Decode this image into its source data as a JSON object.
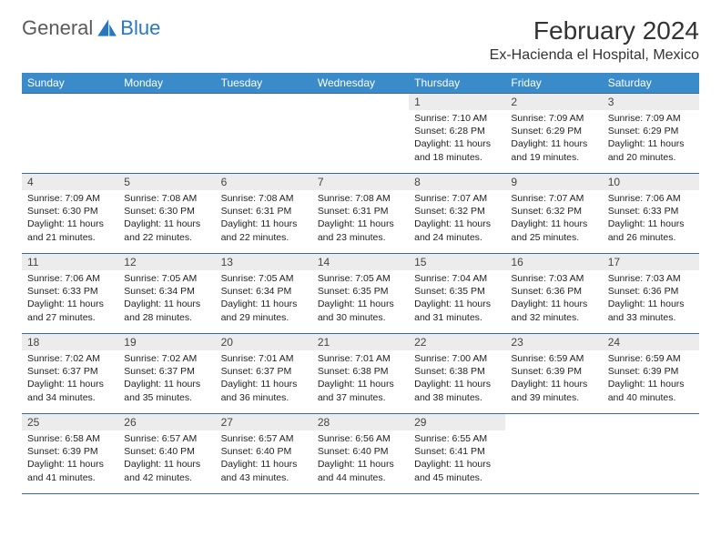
{
  "brand": {
    "word1": "General",
    "word2": "Blue"
  },
  "title": "February 2024",
  "location": "Ex-Hacienda el Hospital, Mexico",
  "colors": {
    "header_bg": "#3a8bc9",
    "header_text": "#ffffff",
    "rule": "#3a6a9a",
    "daynum_bg": "#ececec",
    "brand_gray": "#5a5a5a",
    "brand_blue": "#2779bd"
  },
  "weekdays": [
    "Sunday",
    "Monday",
    "Tuesday",
    "Wednesday",
    "Thursday",
    "Friday",
    "Saturday"
  ],
  "days": {
    "1": {
      "sunrise": "7:10 AM",
      "sunset": "6:28 PM",
      "dl": "11 hours and 18 minutes."
    },
    "2": {
      "sunrise": "7:09 AM",
      "sunset": "6:29 PM",
      "dl": "11 hours and 19 minutes."
    },
    "3": {
      "sunrise": "7:09 AM",
      "sunset": "6:29 PM",
      "dl": "11 hours and 20 minutes."
    },
    "4": {
      "sunrise": "7:09 AM",
      "sunset": "6:30 PM",
      "dl": "11 hours and 21 minutes."
    },
    "5": {
      "sunrise": "7:08 AM",
      "sunset": "6:30 PM",
      "dl": "11 hours and 22 minutes."
    },
    "6": {
      "sunrise": "7:08 AM",
      "sunset": "6:31 PM",
      "dl": "11 hours and 22 minutes."
    },
    "7": {
      "sunrise": "7:08 AM",
      "sunset": "6:31 PM",
      "dl": "11 hours and 23 minutes."
    },
    "8": {
      "sunrise": "7:07 AM",
      "sunset": "6:32 PM",
      "dl": "11 hours and 24 minutes."
    },
    "9": {
      "sunrise": "7:07 AM",
      "sunset": "6:32 PM",
      "dl": "11 hours and 25 minutes."
    },
    "10": {
      "sunrise": "7:06 AM",
      "sunset": "6:33 PM",
      "dl": "11 hours and 26 minutes."
    },
    "11": {
      "sunrise": "7:06 AM",
      "sunset": "6:33 PM",
      "dl": "11 hours and 27 minutes."
    },
    "12": {
      "sunrise": "7:05 AM",
      "sunset": "6:34 PM",
      "dl": "11 hours and 28 minutes."
    },
    "13": {
      "sunrise": "7:05 AM",
      "sunset": "6:34 PM",
      "dl": "11 hours and 29 minutes."
    },
    "14": {
      "sunrise": "7:05 AM",
      "sunset": "6:35 PM",
      "dl": "11 hours and 30 minutes."
    },
    "15": {
      "sunrise": "7:04 AM",
      "sunset": "6:35 PM",
      "dl": "11 hours and 31 minutes."
    },
    "16": {
      "sunrise": "7:03 AM",
      "sunset": "6:36 PM",
      "dl": "11 hours and 32 minutes."
    },
    "17": {
      "sunrise": "7:03 AM",
      "sunset": "6:36 PM",
      "dl": "11 hours and 33 minutes."
    },
    "18": {
      "sunrise": "7:02 AM",
      "sunset": "6:37 PM",
      "dl": "11 hours and 34 minutes."
    },
    "19": {
      "sunrise": "7:02 AM",
      "sunset": "6:37 PM",
      "dl": "11 hours and 35 minutes."
    },
    "20": {
      "sunrise": "7:01 AM",
      "sunset": "6:37 PM",
      "dl": "11 hours and 36 minutes."
    },
    "21": {
      "sunrise": "7:01 AM",
      "sunset": "6:38 PM",
      "dl": "11 hours and 37 minutes."
    },
    "22": {
      "sunrise": "7:00 AM",
      "sunset": "6:38 PM",
      "dl": "11 hours and 38 minutes."
    },
    "23": {
      "sunrise": "6:59 AM",
      "sunset": "6:39 PM",
      "dl": "11 hours and 39 minutes."
    },
    "24": {
      "sunrise": "6:59 AM",
      "sunset": "6:39 PM",
      "dl": "11 hours and 40 minutes."
    },
    "25": {
      "sunrise": "6:58 AM",
      "sunset": "6:39 PM",
      "dl": "11 hours and 41 minutes."
    },
    "26": {
      "sunrise": "6:57 AM",
      "sunset": "6:40 PM",
      "dl": "11 hours and 42 minutes."
    },
    "27": {
      "sunrise": "6:57 AM",
      "sunset": "6:40 PM",
      "dl": "11 hours and 43 minutes."
    },
    "28": {
      "sunrise": "6:56 AM",
      "sunset": "6:40 PM",
      "dl": "11 hours and 44 minutes."
    },
    "29": {
      "sunrise": "6:55 AM",
      "sunset": "6:41 PM",
      "dl": "11 hours and 45 minutes."
    }
  },
  "grid": [
    [
      null,
      null,
      null,
      null,
      "1",
      "2",
      "3"
    ],
    [
      "4",
      "5",
      "6",
      "7",
      "8",
      "9",
      "10"
    ],
    [
      "11",
      "12",
      "13",
      "14",
      "15",
      "16",
      "17"
    ],
    [
      "18",
      "19",
      "20",
      "21",
      "22",
      "23",
      "24"
    ],
    [
      "25",
      "26",
      "27",
      "28",
      "29",
      null,
      null
    ]
  ],
  "labels": {
    "sunrise": "Sunrise: ",
    "sunset": "Sunset: ",
    "daylight": "Daylight: "
  }
}
